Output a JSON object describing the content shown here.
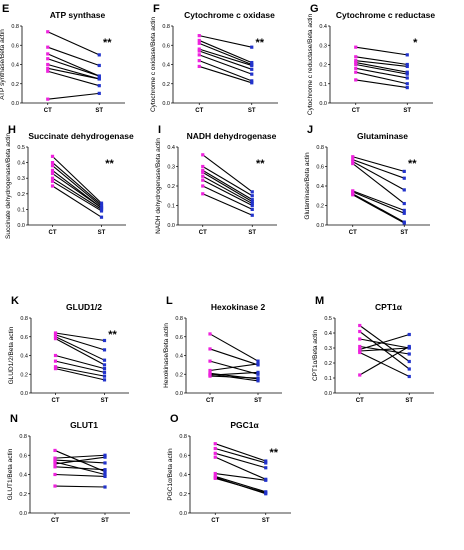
{
  "figure": {
    "ct_color": "#ee22dd",
    "st_color": "#2233cc",
    "line_color": "#000000"
  },
  "chart_data": [
    {
      "panel": "E",
      "title": "ATP synthase",
      "type": "line",
      "categories": [
        "CT",
        "ST"
      ],
      "ylabel": "ATP synthase/Beta actin",
      "ylim": [
        0,
        0.8
      ],
      "yticks": [
        0.0,
        0.2,
        0.4,
        0.6,
        0.8
      ],
      "significance": "**",
      "pairs": [
        [
          0.74,
          0.5
        ],
        [
          0.58,
          0.39
        ],
        [
          0.51,
          0.28
        ],
        [
          0.46,
          0.28
        ],
        [
          0.4,
          0.25
        ],
        [
          0.36,
          0.25
        ],
        [
          0.33,
          0.18
        ],
        [
          0.04,
          0.1
        ]
      ]
    },
    {
      "panel": "F",
      "title": "Cytochrome c oxidase",
      "type": "line",
      "categories": [
        "CT",
        "ST"
      ],
      "ylabel": "Cytochrome c oxidase/Beta actin",
      "ylim": [
        0,
        0.8
      ],
      "yticks": [
        0.0,
        0.2,
        0.4,
        0.6,
        0.8
      ],
      "significance": "**",
      "pairs": [
        [
          0.7,
          0.58
        ],
        [
          0.65,
          0.42
        ],
        [
          0.62,
          0.4
        ],
        [
          0.56,
          0.39
        ],
        [
          0.54,
          0.35
        ],
        [
          0.5,
          0.3
        ],
        [
          0.44,
          0.23
        ],
        [
          0.38,
          0.21
        ]
      ]
    },
    {
      "panel": "G",
      "title": "Cytochrome c reductase",
      "type": "line",
      "categories": [
        "CT",
        "ST"
      ],
      "ylabel": "Cytochrome c reductase/Beta actin",
      "ylim": [
        0,
        0.4
      ],
      "yticks": [
        0.0,
        0.1,
        0.2,
        0.3,
        0.4
      ],
      "significance": "*",
      "pairs": [
        [
          0.29,
          0.25
        ],
        [
          0.24,
          0.2
        ],
        [
          0.22,
          0.19
        ],
        [
          0.21,
          0.16
        ],
        [
          0.2,
          0.15
        ],
        [
          0.18,
          0.13
        ],
        [
          0.16,
          0.1
        ],
        [
          0.12,
          0.08
        ]
      ]
    },
    {
      "panel": "H",
      "title": "Succinate dehydrogenase",
      "type": "line",
      "categories": [
        "CT",
        "ST"
      ],
      "ylabel": "Succinate dehydrogenase/Beta actin",
      "ylim": [
        0,
        0.5
      ],
      "yticks": [
        0.0,
        0.1,
        0.2,
        0.3,
        0.4,
        0.5
      ],
      "significance": "**",
      "pairs": [
        [
          0.44,
          0.14
        ],
        [
          0.4,
          0.13
        ],
        [
          0.38,
          0.12
        ],
        [
          0.35,
          0.11
        ],
        [
          0.33,
          0.11
        ],
        [
          0.3,
          0.1
        ],
        [
          0.28,
          0.09
        ],
        [
          0.25,
          0.05
        ]
      ]
    },
    {
      "panel": "I",
      "title": "NADH dehydrogenase",
      "type": "line",
      "categories": [
        "CT",
        "ST"
      ],
      "ylabel": "NADH dehydrogenase/Beta actin",
      "ylim": [
        0,
        0.4
      ],
      "yticks": [
        0.0,
        0.1,
        0.2,
        0.3,
        0.4
      ],
      "significance": "**",
      "pairs": [
        [
          0.36,
          0.17
        ],
        [
          0.3,
          0.15
        ],
        [
          0.28,
          0.13
        ],
        [
          0.27,
          0.12
        ],
        [
          0.25,
          0.11
        ],
        [
          0.23,
          0.1
        ],
        [
          0.2,
          0.08
        ],
        [
          0.16,
          0.05
        ]
      ]
    },
    {
      "panel": "J",
      "title": "Glutaminase",
      "type": "line",
      "categories": [
        "CT",
        "ST"
      ],
      "ylabel": "Glutaminase/Beta actin",
      "ylim": [
        0,
        0.8
      ],
      "yticks": [
        0.0,
        0.2,
        0.4,
        0.6,
        0.8
      ],
      "significance": "**",
      "pairs": [
        [
          0.7,
          0.55
        ],
        [
          0.67,
          0.48
        ],
        [
          0.65,
          0.36
        ],
        [
          0.63,
          0.22
        ],
        [
          0.35,
          0.15
        ],
        [
          0.34,
          0.12
        ],
        [
          0.32,
          0.03
        ],
        [
          0.31,
          0.02
        ]
      ]
    },
    {
      "panel": "K",
      "title": "GLUD1/2",
      "type": "line",
      "categories": [
        "CT",
        "ST"
      ],
      "ylabel": "GLUD1/2/Beta actin",
      "ylim": [
        0,
        0.8
      ],
      "yticks": [
        0.0,
        0.2,
        0.4,
        0.6,
        0.8
      ],
      "significance": "**",
      "pairs": [
        [
          0.64,
          0.56
        ],
        [
          0.62,
          0.46
        ],
        [
          0.6,
          0.35
        ],
        [
          0.58,
          0.3
        ],
        [
          0.4,
          0.26
        ],
        [
          0.34,
          0.22
        ],
        [
          0.28,
          0.18
        ],
        [
          0.26,
          0.14
        ]
      ]
    },
    {
      "panel": "L",
      "title": "Hexokinase 2",
      "type": "line",
      "categories": [
        "CT",
        "ST"
      ],
      "ylabel": "Hexokinase/Beta actin",
      "ylim": [
        0,
        0.8
      ],
      "yticks": [
        0.0,
        0.2,
        0.4,
        0.6,
        0.8
      ],
      "significance": "",
      "pairs": [
        [
          0.63,
          0.34
        ],
        [
          0.47,
          0.3
        ],
        [
          0.34,
          0.2
        ],
        [
          0.24,
          0.31
        ],
        [
          0.21,
          0.15
        ],
        [
          0.2,
          0.13
        ],
        [
          0.19,
          0.22
        ],
        [
          0.18,
          0.16
        ]
      ]
    },
    {
      "panel": "M",
      "title": "CPT1α",
      "type": "line",
      "categories": [
        "CT",
        "ST"
      ],
      "ylabel": "CPT1α/Beta actin",
      "ylim": [
        0,
        0.5
      ],
      "yticks": [
        0.0,
        0.1,
        0.2,
        0.3,
        0.4,
        0.5
      ],
      "significance": "",
      "pairs": [
        [
          0.45,
          0.21
        ],
        [
          0.41,
          0.16
        ],
        [
          0.36,
          0.3
        ],
        [
          0.31,
          0.26
        ],
        [
          0.29,
          0.39
        ],
        [
          0.28,
          0.3
        ],
        [
          0.27,
          0.11
        ],
        [
          0.12,
          0.31
        ]
      ]
    },
    {
      "panel": "N",
      "title": "GLUT1",
      "type": "line",
      "categories": [
        "CT",
        "ST"
      ],
      "ylabel": "GLUT1/Beta actin",
      "ylim": [
        0,
        0.8
      ],
      "yticks": [
        0.0,
        0.2,
        0.4,
        0.6,
        0.8
      ],
      "significance": "",
      "pairs": [
        [
          0.65,
          0.43
        ],
        [
          0.57,
          0.6
        ],
        [
          0.55,
          0.52
        ],
        [
          0.53,
          0.4
        ],
        [
          0.51,
          0.58
        ],
        [
          0.48,
          0.45
        ],
        [
          0.4,
          0.38
        ],
        [
          0.28,
          0.27
        ]
      ]
    },
    {
      "panel": "O",
      "title": "PGC1α",
      "type": "line",
      "categories": [
        "CT",
        "ST"
      ],
      "ylabel": "PGC1α/Beta actin",
      "ylim": [
        0,
        0.8
      ],
      "yticks": [
        0.0,
        0.2,
        0.4,
        0.6,
        0.8
      ],
      "significance": "**",
      "pairs": [
        [
          0.72,
          0.54
        ],
        [
          0.67,
          0.52
        ],
        [
          0.62,
          0.47
        ],
        [
          0.58,
          0.35
        ],
        [
          0.41,
          0.34
        ],
        [
          0.38,
          0.22
        ],
        [
          0.37,
          0.2
        ],
        [
          0.36,
          0.21
        ]
      ]
    }
  ]
}
